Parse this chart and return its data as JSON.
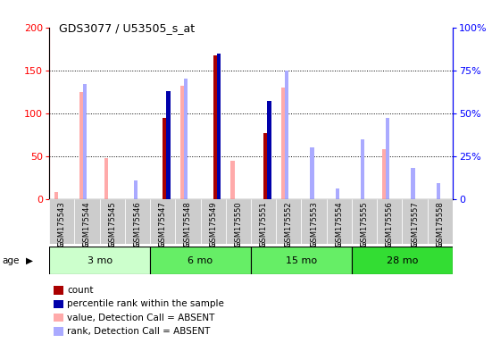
{
  "title": "GDS3077 / U53505_s_at",
  "samples": [
    "GSM175543",
    "GSM175544",
    "GSM175545",
    "GSM175546",
    "GSM175547",
    "GSM175548",
    "GSM175549",
    "GSM175550",
    "GSM175551",
    "GSM175552",
    "GSM175553",
    "GSM175554",
    "GSM175555",
    "GSM175556",
    "GSM175557",
    "GSM175558"
  ],
  "count": [
    0,
    0,
    0,
    0,
    95,
    0,
    167,
    0,
    77,
    0,
    0,
    0,
    0,
    0,
    0,
    0
  ],
  "percentile_rank": [
    0,
    0,
    0,
    0,
    63,
    0,
    85,
    0,
    57,
    0,
    0,
    0,
    0,
    0,
    0,
    0
  ],
  "value_absent": [
    8,
    125,
    48,
    0,
    0,
    132,
    0,
    45,
    0,
    130,
    0,
    0,
    0,
    58,
    0,
    0
  ],
  "rank_absent": [
    0,
    67,
    0,
    11,
    0,
    70,
    0,
    0,
    0,
    75,
    30,
    6,
    35,
    47,
    18,
    9
  ],
  "bar_width": 0.15,
  "ylim_left": [
    0,
    200
  ],
  "ylim_right": [
    0,
    100
  ],
  "yticks_left": [
    0,
    50,
    100,
    150,
    200
  ],
  "yticks_right": [
    0,
    25,
    50,
    75,
    100
  ],
  "color_count": "#aa0000",
  "color_percentile": "#0000aa",
  "color_value_absent": "#ffaaaa",
  "color_rank_absent": "#aaaaff",
  "bg_plot": "#ffffff",
  "bg_age_3mo": "#ccffcc",
  "bg_age_6mo": "#66ee66",
  "bg_age_15mo": "#66ee66",
  "bg_age_28mo": "#33dd33",
  "age_groups": [
    {
      "label": "3 mo",
      "start": 0,
      "end": 4,
      "color_key": "bg_age_3mo"
    },
    {
      "label": "6 mo",
      "start": 4,
      "end": 8,
      "color_key": "bg_age_6mo"
    },
    {
      "label": "15 mo",
      "start": 8,
      "end": 12,
      "color_key": "bg_age_15mo"
    },
    {
      "label": "28 mo",
      "start": 12,
      "end": 16,
      "color_key": "bg_age_28mo"
    }
  ]
}
